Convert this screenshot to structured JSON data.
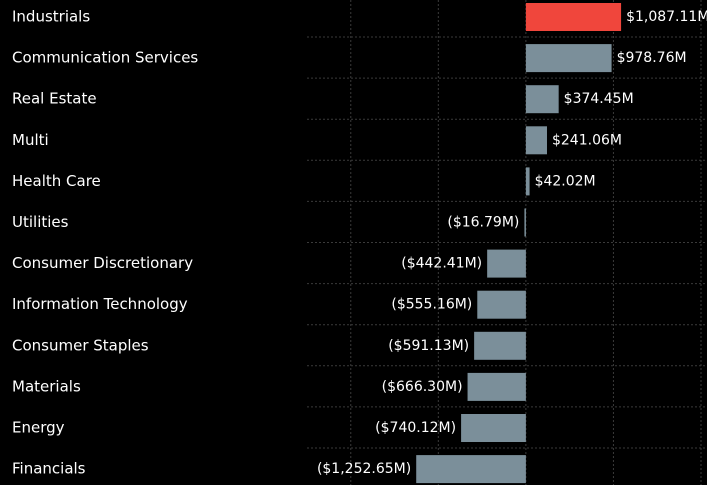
{
  "chart_data": {
    "type": "barh",
    "categories": [
      "Industrials",
      "Communication Services",
      "Real Estate",
      "Multi",
      "Health Care",
      "Utilities",
      "Consumer Discretionary",
      "Information Technology",
      "Consumer Staples",
      "Materials",
      "Energy",
      "Financials"
    ],
    "values": [
      1087.11,
      978.76,
      374.45,
      241.06,
      42.02,
      -16.79,
      -442.41,
      -555.16,
      -591.13,
      -666.3,
      -740.12,
      -1252.65
    ],
    "value_labels": [
      "$1,087.11M",
      "$978.76M",
      "$374.45M",
      "$241.06M",
      "$42.02M",
      "($16.79M)",
      "($442.41M)",
      "($555.16M)",
      "($591.13M)",
      "($666.30M)",
      "($740.12M)",
      "($1,252.65M)"
    ],
    "colors": [
      "#f0463c",
      "#7b8f9a",
      "#7b8f9a",
      "#7b8f9a",
      "#7b8f9a",
      "#7b8f9a",
      "#7b8f9a",
      "#7b8f9a",
      "#7b8f9a",
      "#7b8f9a",
      "#7b8f9a",
      "#7b8f9a"
    ],
    "xlim": [
      -2500,
      2000
    ],
    "xticks": [
      -2000,
      -1000,
      0,
      1000,
      2000
    ],
    "grid": true
  }
}
